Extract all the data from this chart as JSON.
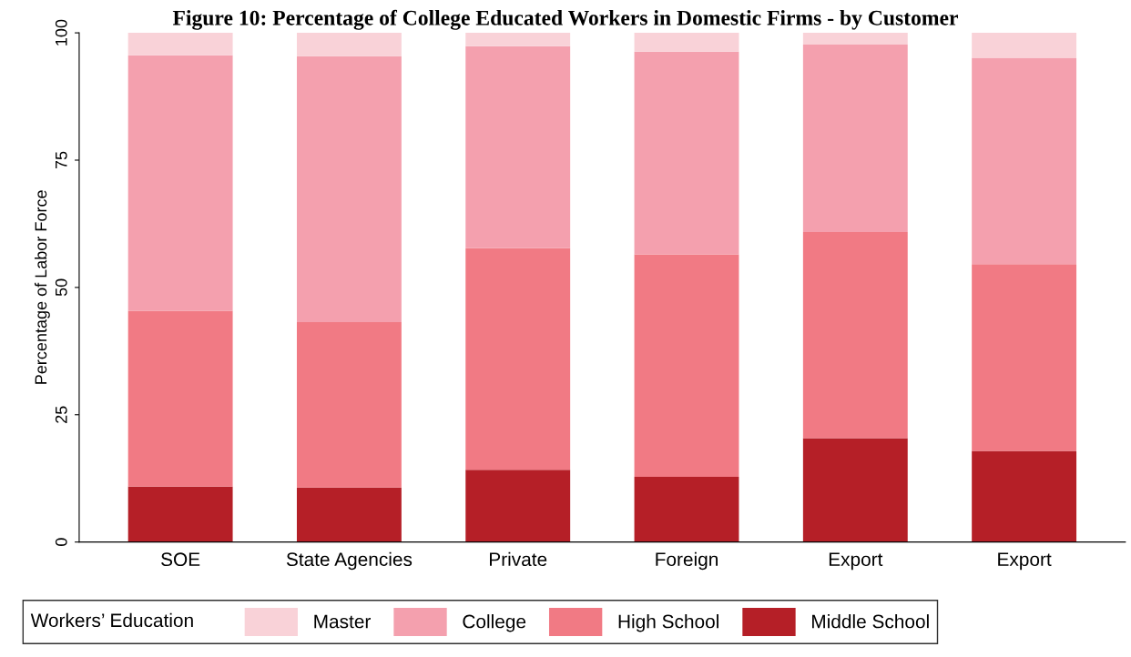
{
  "chart_data": {
    "type": "bar",
    "stacked": true,
    "title": "Figure 10: Percentage of College Educated Workers in Domestic Firms - by Customer",
    "ylabel": "Percentage of Labor Force",
    "categories": [
      "SOE",
      "State Agencies",
      "Private",
      "Foreign",
      "Export",
      "Export"
    ],
    "series": [
      {
        "name": "Middle School",
        "color": "#b51f27",
        "values": [
          10.9,
          10.7,
          14.2,
          12.8,
          20.4,
          17.9
        ]
      },
      {
        "name": "High School",
        "color": "#f17a84",
        "values": [
          34.5,
          32.5,
          43.5,
          43.7,
          40.5,
          36.7
        ]
      },
      {
        "name": "College",
        "color": "#f4a0ae",
        "values": [
          50.2,
          52.2,
          39.7,
          39.8,
          36.8,
          40.5
        ]
      },
      {
        "name": "Master",
        "color": "#f9d2d8",
        "values": [
          4.4,
          4.6,
          2.6,
          3.7,
          2.3,
          4.9
        ]
      }
    ],
    "ylim": [
      0,
      100
    ],
    "yticks": [
      0,
      25,
      50,
      75,
      100
    ],
    "grid": false,
    "legend": "bottom",
    "legend_title": "Workers’ Education"
  }
}
